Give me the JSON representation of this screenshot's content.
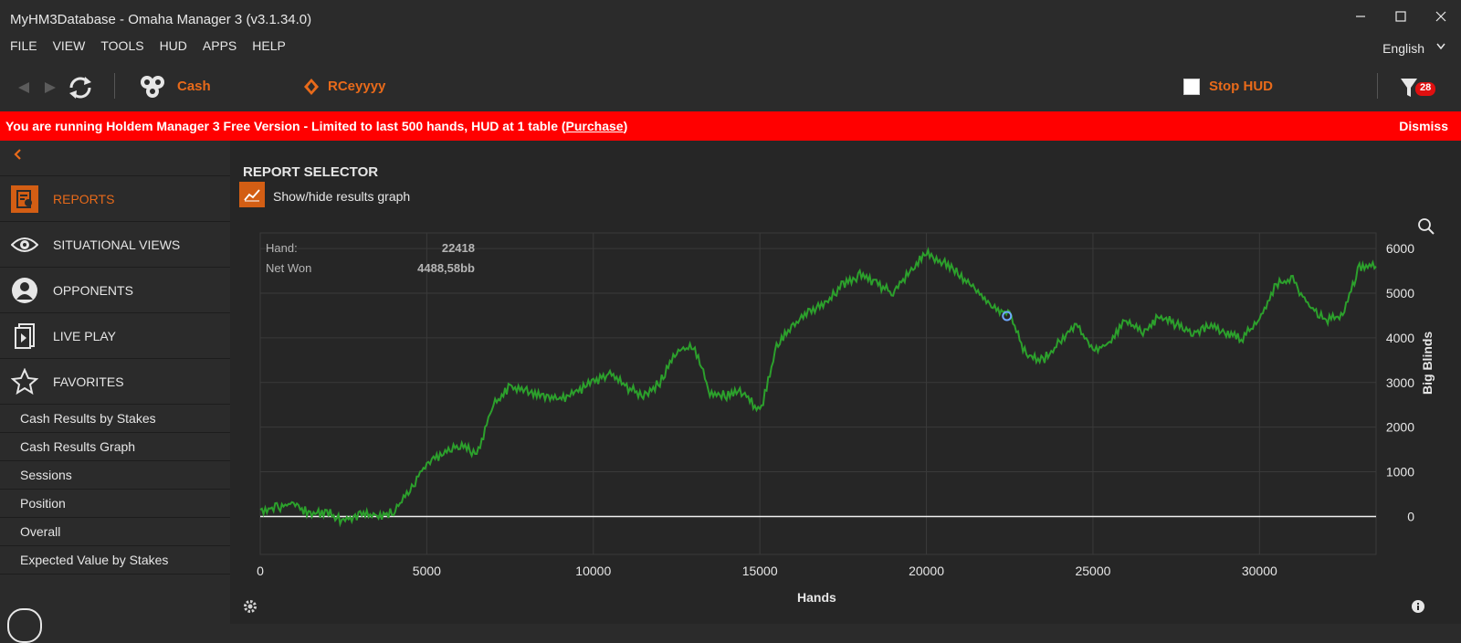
{
  "window": {
    "title": "MyHM3Database - Omaha Manager 3 (v3.1.34.0)",
    "controls": [
      "minimize",
      "maximize",
      "close"
    ]
  },
  "menu": {
    "items": [
      "FILE",
      "VIEW",
      "TOOLS",
      "HUD",
      "APPS",
      "HELP"
    ],
    "language": "English"
  },
  "toolbar": {
    "game_type": "Cash",
    "player": "RCeyyyy",
    "stop_hud": "Stop HUD",
    "filter_badge": "28"
  },
  "banner": {
    "message": "You are running Holdem Manager 3 Free Version - Limited to last 500 hands, HUD at 1 table (",
    "purchase": "Purchase",
    "close_paren": ")",
    "dismiss": "Dismiss"
  },
  "sidebar": {
    "nav": [
      {
        "label": "REPORTS",
        "icon": "report-icon",
        "active": true
      },
      {
        "label": "SITUATIONAL VIEWS",
        "icon": "eye-icon",
        "active": false
      },
      {
        "label": "OPPONENTS",
        "icon": "user-icon",
        "active": false
      },
      {
        "label": "LIVE PLAY",
        "icon": "live-play-icon",
        "active": false
      },
      {
        "label": "FAVORITES",
        "icon": "star-icon",
        "active": false
      }
    ],
    "favorites": [
      "Cash Results by Stakes",
      "Cash Results Graph",
      "Sessions",
      "Position",
      "Overall",
      "Expected Value by Stakes"
    ]
  },
  "main": {
    "title": "REPORT SELECTOR",
    "graph_toggle": "Show/hide results graph"
  },
  "tooltip": {
    "hand_label": "Hand:",
    "hand_value": "22418",
    "net_label": "Net Won",
    "net_value": "4488,58bb"
  },
  "colors": {
    "accent": "#e86a1a",
    "banner": "#ff0000",
    "line": "#2ca02c",
    "marker": "#6fa8ff"
  },
  "chart_data": {
    "type": "line",
    "xlabel": "Hands",
    "ylabel": "Big Blinds",
    "xlim": [
      0,
      33500
    ],
    "ylim": [
      -850,
      6350
    ],
    "x_ticks": [
      0,
      5000,
      10000,
      15000,
      20000,
      25000,
      30000
    ],
    "x_tick_labels": [
      "0",
      "5000",
      "10000",
      "15000",
      "20000",
      "25000",
      "30000"
    ],
    "y_ticks": [
      0,
      1000,
      2000,
      3000,
      4000,
      5000,
      6000
    ],
    "y_tick_labels": [
      "0",
      "1000",
      "2000",
      "3000",
      "4000",
      "5000",
      "6000"
    ],
    "grid": true,
    "highlight_point": {
      "x": 22418,
      "y": 4488.58
    },
    "series": [
      {
        "x": [
          0,
          500,
          1000,
          1500,
          2000,
          2500,
          3000,
          3500,
          4000,
          4500,
          5000,
          5500,
          6000,
          6500,
          7000,
          7500,
          8000,
          8500,
          9000,
          9500,
          10000,
          10500,
          11000,
          11500,
          12000,
          12500,
          13000,
          13500,
          14000,
          14500,
          15000,
          15500,
          16000,
          16500,
          17000,
          17500,
          18000,
          18500,
          19000,
          19500,
          20000,
          20500,
          21000,
          21500,
          22000,
          22500,
          23000,
          23500,
          24000,
          24500,
          25000,
          25500,
          26000,
          26500,
          27000,
          27500,
          28000,
          28500,
          29000,
          29500,
          30000,
          30500,
          31000,
          31500,
          32000,
          32500,
          33000,
          33500
        ],
        "y": [
          150,
          200,
          300,
          50,
          100,
          -100,
          50,
          0,
          100,
          600,
          1200,
          1400,
          1600,
          1400,
          2500,
          2900,
          2800,
          2700,
          2600,
          2800,
          3000,
          3200,
          2900,
          2700,
          3000,
          3700,
          3800,
          2800,
          2700,
          2800,
          2300,
          3800,
          4300,
          4600,
          4800,
          5200,
          5400,
          5200,
          5000,
          5500,
          5900,
          5700,
          5400,
          5100,
          4700,
          4500,
          3600,
          3500,
          3900,
          4300,
          3700,
          3900,
          4400,
          4100,
          4500,
          4300,
          4100,
          4300,
          4100,
          4000,
          4400,
          5200,
          5300,
          4700,
          4400,
          4500,
          5600,
          5600
        ]
      }
    ]
  }
}
